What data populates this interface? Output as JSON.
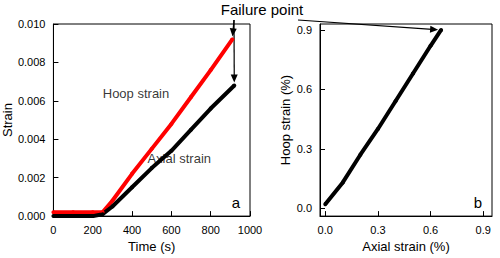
{
  "chart_data": [
    {
      "type": "line",
      "x_label": "Time (s)",
      "y_label": "Strain",
      "xlim": [
        0,
        1000
      ],
      "xticks": [
        0,
        200,
        400,
        600,
        800,
        1000
      ],
      "ylim": [
        0,
        0.01
      ],
      "yticks": [
        {
          "value": 0,
          "label": "0.000"
        },
        0.002,
        0.004,
        0.006,
        0.008,
        {
          "value": 0.01,
          "label": "0.010"
        }
      ],
      "grid": false,
      "annotations": [
        "a"
      ],
      "series": [
        {
          "name": "Hoop strain",
          "color": "#ff0000",
          "marker": "circle",
          "label_at": [
            420,
            0.0064
          ],
          "x": [
            0,
            100,
            200,
            250,
            300,
            400,
            500,
            600,
            700,
            800,
            910
          ],
          "values": [
            0.0002,
            0.0002,
            0.0002,
            0.0002,
            0.0008,
            0.0022,
            0.0035,
            0.0048,
            0.0062,
            0.0076,
            0.0092
          ]
        },
        {
          "name": "Axial strain",
          "color": "#000000",
          "marker": "circle",
          "label_at": [
            640,
            0.003
          ],
          "x": [
            0,
            100,
            200,
            250,
            300,
            400,
            500,
            600,
            700,
            800,
            920
          ],
          "values": [
            0,
            0,
            0,
            0.0001,
            0.0005,
            0.0015,
            0.0025,
            0.0034,
            0.0045,
            0.0056,
            0.0068
          ]
        }
      ]
    },
    {
      "type": "line",
      "x_label": "Axial strain (%)",
      "y_label": "Hoop strain (%)",
      "xlim": [
        -0.03,
        0.95
      ],
      "xticks": [
        {
          "value": 0,
          "label": "0.0"
        },
        0.3,
        0.6,
        0.9
      ],
      "ylim": [
        -0.04,
        0.93
      ],
      "yticks": [
        {
          "value": 0,
          "label": "0.0"
        },
        0.3,
        0.6,
        0.9
      ],
      "grid": false,
      "annotations": [
        "b"
      ],
      "series": [
        {
          "color": "#000000",
          "marker": "circle",
          "x": [
            0,
            0.1,
            0.2,
            0.3,
            0.4,
            0.5,
            0.6,
            0.66
          ],
          "values": [
            0.02,
            0.13,
            0.27,
            0.4,
            0.54,
            0.68,
            0.82,
            0.9
          ]
        }
      ]
    }
  ],
  "figure_annotation": {
    "text": "Failure point"
  }
}
